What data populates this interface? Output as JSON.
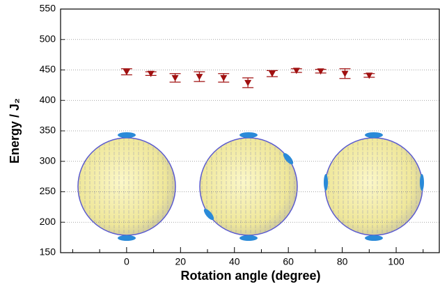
{
  "chart_data": {
    "type": "scatter",
    "x_label": "Rotation angle (degree)",
    "y_label": "Energy / J₂",
    "x": [
      0,
      9,
      18,
      27,
      36,
      45,
      54,
      63,
      72,
      81,
      90
    ],
    "series": [
      {
        "color": "#a01010",
        "values": [
          447,
          444,
          437,
          439,
          437,
          429,
          444,
          449,
          448,
          444,
          441
        ],
        "errors": [
          5,
          3,
          7,
          8,
          7,
          8,
          5,
          3,
          3,
          8,
          3
        ]
      }
    ],
    "xlim": [
      -24.5,
      116
    ],
    "ylim": [
      150,
      550
    ],
    "xticks": [
      0,
      20,
      40,
      60,
      80,
      100
    ],
    "xminorticks": [
      -20,
      -10,
      10,
      30,
      50,
      70,
      90,
      110
    ],
    "yticks": [
      150,
      200,
      250,
      300,
      350,
      400,
      450,
      500,
      550
    ],
    "grid": true
  }
}
